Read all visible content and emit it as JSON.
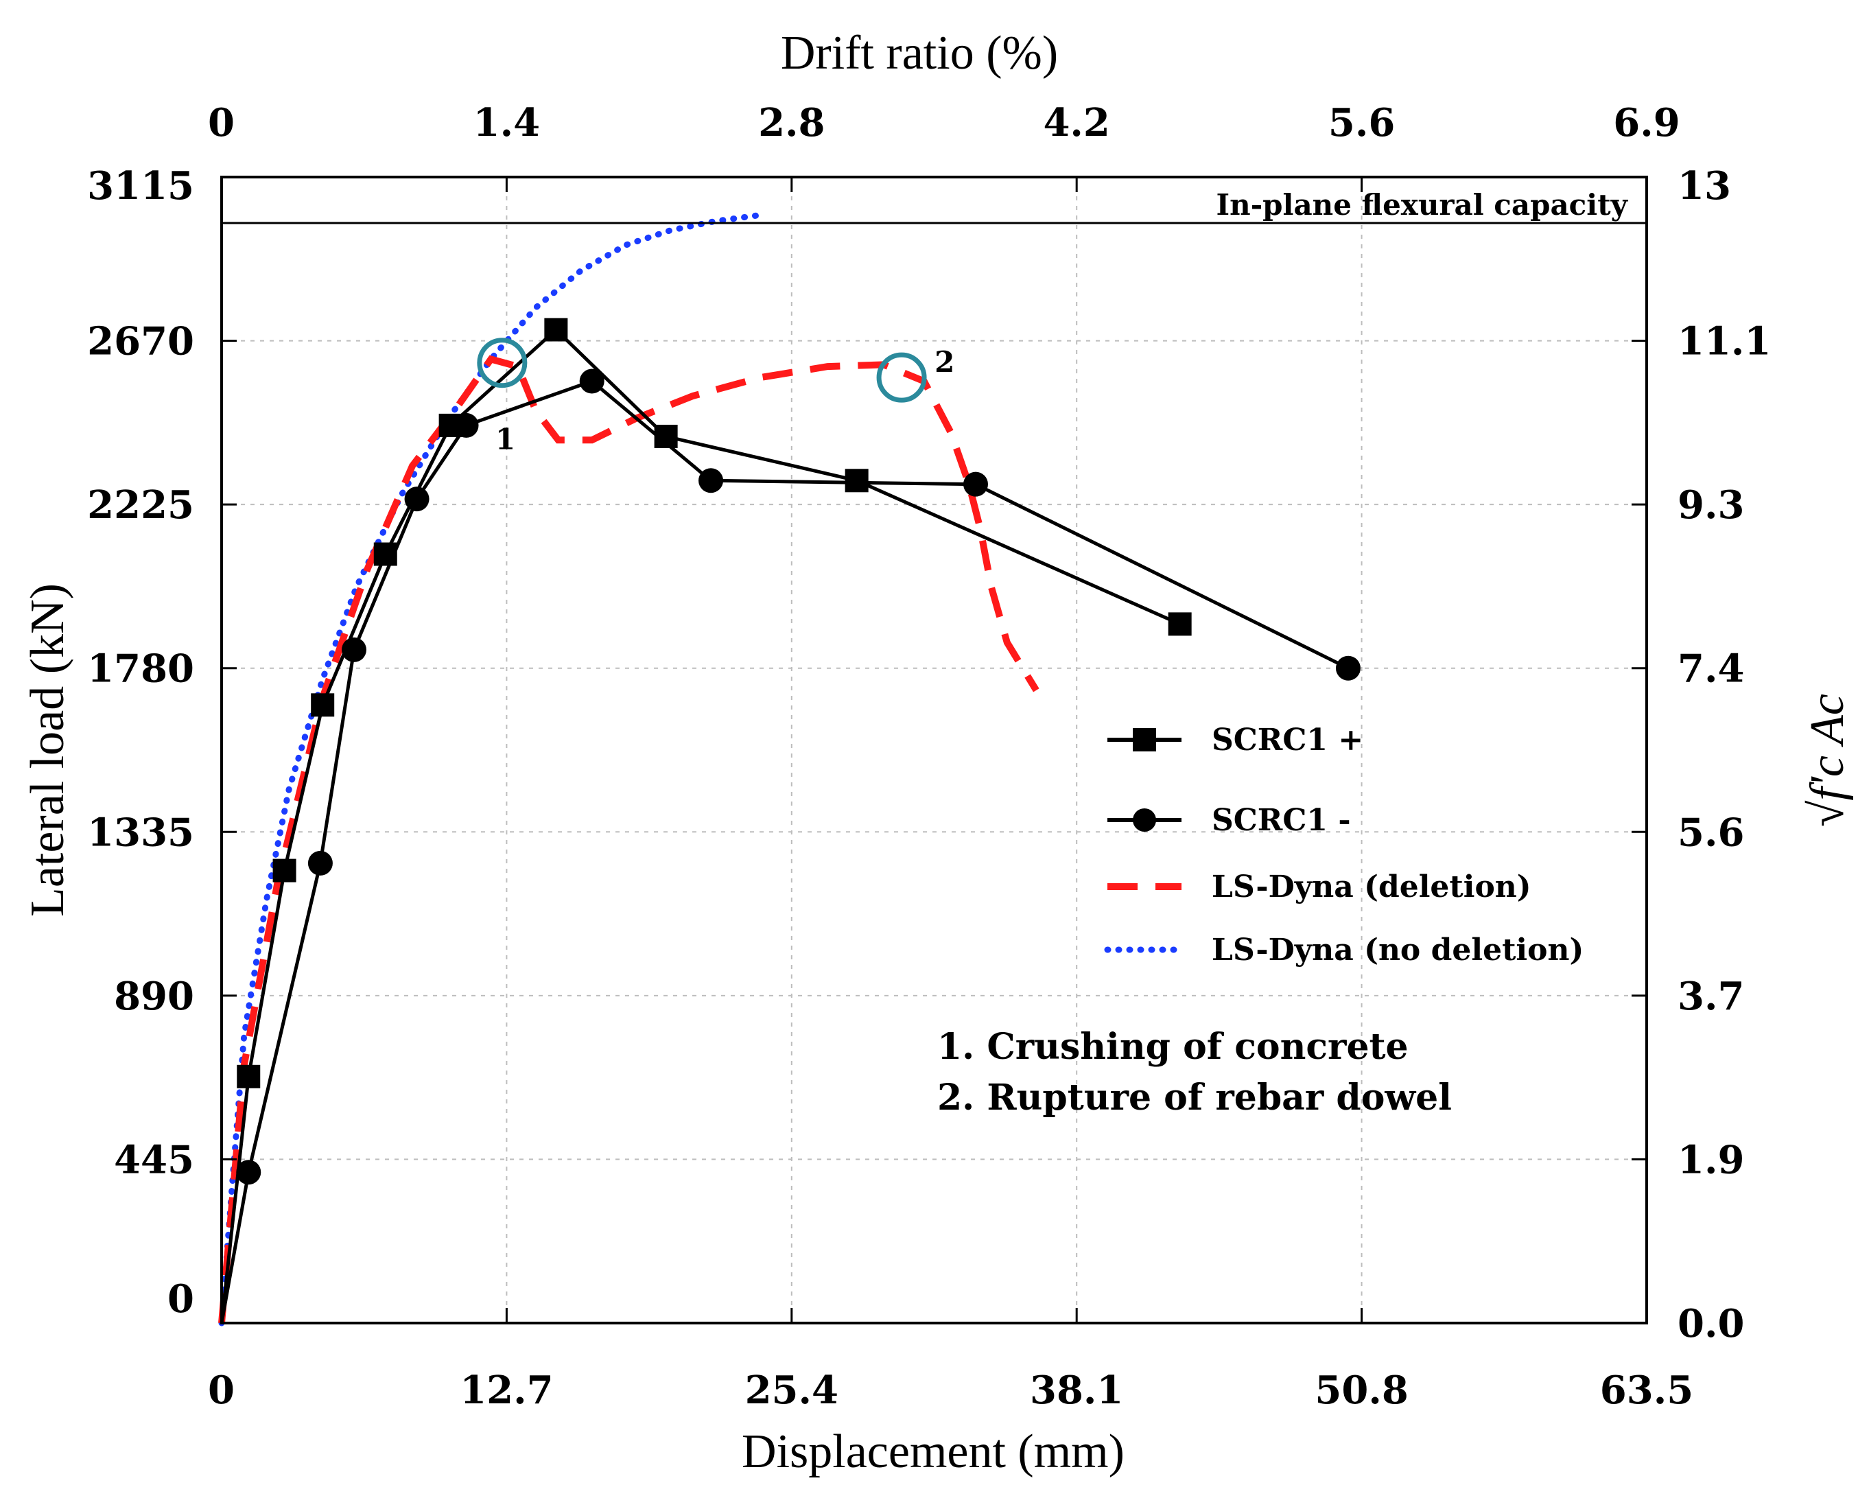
{
  "chart_data": {
    "type": "line",
    "title": "",
    "xlabel": "Displacement (mm)",
    "ylabel": "Lateral load (kN)",
    "x2label": "Drift ratio (%)",
    "y2label": "√f'c Ac",
    "xlim": [
      0,
      63.5
    ],
    "ylim": [
      0,
      3115
    ],
    "x_ticks": [
      "0",
      "12.7",
      "25.4",
      "38.1",
      "50.8",
      "63.5"
    ],
    "y_ticks": [
      "0",
      "445",
      "890",
      "1335",
      "1780",
      "2225",
      "2670",
      "3115"
    ],
    "x2_ticks": [
      "0",
      "1.4",
      "2.8",
      "4.2",
      "5.6",
      "6.9"
    ],
    "y2_ticks": [
      "0.0",
      "1.9",
      "3.7",
      "5.6",
      "7.4",
      "9.3",
      "11.1",
      "13"
    ],
    "capacity_line": {
      "value": 2990,
      "label": "In-plane flexural capacity"
    },
    "series": [
      {
        "name": "SCRC1 +",
        "style": "solid-square",
        "color": "#000000",
        "points": [
          [
            0,
            0
          ],
          [
            1.2,
            670
          ],
          [
            2.8,
            1230
          ],
          [
            4.5,
            1680
          ],
          [
            7.3,
            2090
          ],
          [
            10.2,
            2440
          ],
          [
            14.9,
            2700
          ],
          [
            19.8,
            2410
          ],
          [
            28.3,
            2290
          ],
          [
            42.7,
            1900
          ]
        ]
      },
      {
        "name": "SCRC1 -",
        "style": "solid-circle",
        "color": "#000000",
        "points": [
          [
            0,
            0
          ],
          [
            1.2,
            410
          ],
          [
            4.4,
            1250
          ],
          [
            5.9,
            1830
          ],
          [
            8.7,
            2240
          ],
          [
            10.9,
            2440
          ],
          [
            16.5,
            2560
          ],
          [
            21.8,
            2290
          ],
          [
            33.6,
            2280
          ],
          [
            50.2,
            1780
          ]
        ]
      },
      {
        "name": "LS-Dyna (deletion)",
        "style": "dashed",
        "color": "#ff1a1a",
        "points": [
          [
            0,
            0
          ],
          [
            1,
            700
          ],
          [
            2.5,
            1200
          ],
          [
            4.5,
            1700
          ],
          [
            6.5,
            2050
          ],
          [
            8.5,
            2330
          ],
          [
            10.5,
            2490
          ],
          [
            12.0,
            2620
          ],
          [
            13.2,
            2600
          ],
          [
            14.0,
            2480
          ],
          [
            15.0,
            2400
          ],
          [
            16.5,
            2400
          ],
          [
            18.5,
            2460
          ],
          [
            21,
            2520
          ],
          [
            24,
            2570
          ],
          [
            27,
            2600
          ],
          [
            29.5,
            2605
          ],
          [
            31.3,
            2560
          ],
          [
            32.5,
            2420
          ],
          [
            33.3,
            2280
          ],
          [
            33.8,
            2160
          ],
          [
            34.3,
            2000
          ],
          [
            35.0,
            1850
          ],
          [
            36.3,
            1720
          ]
        ]
      },
      {
        "name": "LS-Dyna (no deletion)",
        "style": "dotted",
        "color": "#1a3cff",
        "points": [
          [
            0,
            0
          ],
          [
            0.5,
            400
          ],
          [
            1,
            780
          ],
          [
            2,
            1150
          ],
          [
            3,
            1450
          ],
          [
            4.5,
            1750
          ],
          [
            6,
            2000
          ],
          [
            8,
            2250
          ],
          [
            10,
            2450
          ],
          [
            12,
            2620
          ],
          [
            14,
            2760
          ],
          [
            16,
            2860
          ],
          [
            18,
            2930
          ],
          [
            20,
            2970
          ],
          [
            22,
            2995
          ],
          [
            23.8,
            3010
          ]
        ]
      }
    ],
    "markers": [
      {
        "label": "1",
        "x": 12.5,
        "y": 2610
      },
      {
        "label": "2",
        "x": 30.3,
        "y": 2570
      }
    ],
    "notes": [
      "1.    Crushing of concrete",
      "2.    Rupture of rebar dowel"
    ],
    "legend_position": "center-right"
  }
}
